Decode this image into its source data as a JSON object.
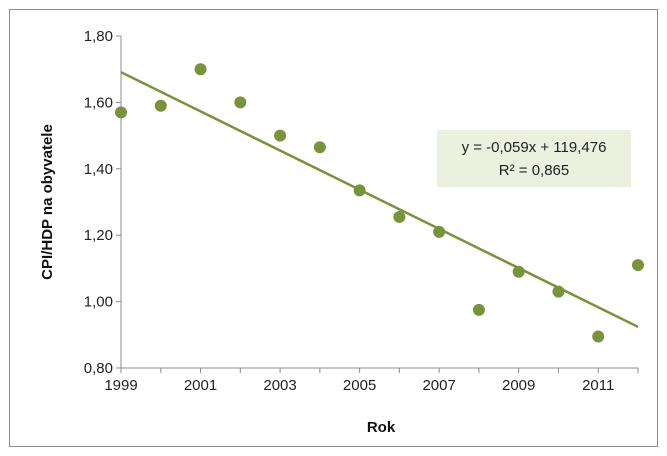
{
  "chart_data": {
    "type": "scatter",
    "title": "",
    "xlabel": "Rok",
    "ylabel": "CPI/HDP na obyvatele",
    "x": [
      1999,
      2000,
      2001,
      2002,
      2003,
      2004,
      2005,
      2006,
      2007,
      2008,
      2009,
      2010,
      2011,
      2012
    ],
    "y": [
      1.57,
      1.59,
      1.7,
      1.6,
      1.5,
      1.465,
      1.335,
      1.255,
      1.21,
      0.975,
      1.09,
      1.03,
      0.895,
      1.11
    ],
    "xlim": [
      1999,
      2012
    ],
    "ylim": [
      0.8,
      1.8
    ],
    "xticks": [
      "1999",
      "2001",
      "2003",
      "2005",
      "2007",
      "2009",
      "2011"
    ],
    "yticks": [
      "0,80",
      "1,00",
      "1,20",
      "1,40",
      "1,60",
      "1,80"
    ],
    "trendline": {
      "type": "linear",
      "equation": "y = -0,059x + 119,476",
      "r2": "R² = 0,865",
      "start": [
        1999,
        1.691
      ],
      "end": [
        2012,
        0.924
      ]
    },
    "grid": false,
    "colors": {
      "marker": "#77933c",
      "trendline": "#77933c",
      "label_box": "#ebf1de"
    }
  }
}
